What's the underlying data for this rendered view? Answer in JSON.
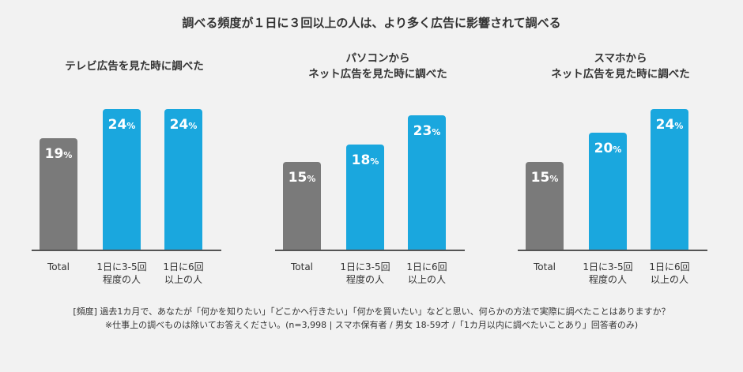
{
  "title": "調べる頻度が１日に３回以上の人は、より多く広告に影響されて調べる",
  "colors": {
    "gray": "#7a7a7a",
    "blue": "#1aa7de",
    "baseline": "#555555"
  },
  "chart_data": [
    {
      "type": "bar",
      "title": "テレビ広告を見た時に調べた",
      "categories": [
        "Total",
        "1日に3-5回\n程度の人",
        "1日に6回\n以上の人"
      ],
      "values": [
        19,
        24,
        24
      ],
      "unit": "%",
      "colors": [
        "#7a7a7a",
        "#1aa7de",
        "#1aa7de"
      ]
    },
    {
      "type": "bar",
      "title": "パソコンから\nネット広告を見た時に調べた",
      "categories": [
        "Total",
        "1日に3-5回\n程度の人",
        "1日に6回\n以上の人"
      ],
      "values": [
        15,
        18,
        23
      ],
      "unit": "%",
      "colors": [
        "#7a7a7a",
        "#1aa7de",
        "#1aa7de"
      ]
    },
    {
      "type": "bar",
      "title": "スマホから\nネット広告を見た時に調べた",
      "categories": [
        "Total",
        "1日に3-5回\n程度の人",
        "1日に6回\n以上の人"
      ],
      "values": [
        15,
        20,
        24
      ],
      "unit": "%",
      "colors": [
        "#7a7a7a",
        "#1aa7de",
        "#1aa7de"
      ]
    }
  ],
  "footnote": {
    "line1": "[頻度] 過去1カ月で、あなたが「何かを知りたい」「どこかへ行きたい」「何かを買いたい」などと思い、何らかの方法で実際に調べたことはありますか？",
    "line2": "※仕事上の調べものは除いてお答えください。(n=3,998 | スマホ保有者 / 男女 18-59才 /「1カ月以内に調べたいことあり」回答者のみ)"
  }
}
